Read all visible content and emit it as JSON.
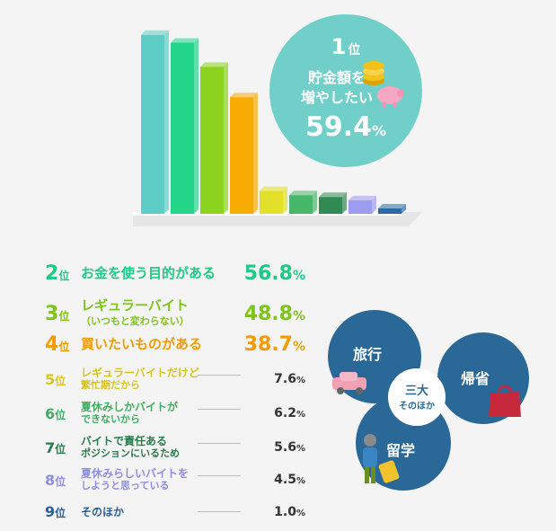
{
  "chart_data": {
    "type": "bar",
    "categories": [
      "1位",
      "2位",
      "3位",
      "4位",
      "5位",
      "6位",
      "7位",
      "8位",
      "9位"
    ],
    "values": [
      59.4,
      56.8,
      48.8,
      38.7,
      7.6,
      6.2,
      5.6,
      4.5,
      1.0
    ],
    "ylim": [
      0,
      65
    ],
    "colors": [
      "#5ecdc6",
      "#23d68a",
      "#8cd320",
      "#f8ab00",
      "#e3e02a",
      "#47b86a",
      "#2f8a54",
      "#9c9cf0",
      "#2a6aa8"
    ]
  },
  "top": {
    "rank_num": "1",
    "rank_suffix": "位",
    "label_line1": "貯金額を",
    "label_line2": "増やしたい",
    "pct_num": "59.4",
    "pct_unit": "%"
  },
  "ranking": [
    {
      "num": "2",
      "suffix": "位",
      "label": "お金を使う目的がある",
      "pct": "56.8",
      "unit": "%",
      "color": "#1dcb85"
    },
    {
      "num": "3",
      "suffix": "位",
      "label": "レギュラーバイト",
      "sub": "（いつもと変わらない）",
      "pct": "48.8",
      "unit": "%",
      "color": "#7ec51b"
    },
    {
      "num": "4",
      "suffix": "位",
      "label": "買いたいものがある",
      "pct": "38.7",
      "unit": "%",
      "color": "#f59a00"
    },
    {
      "num": "5",
      "suffix": "位",
      "label": "レギュラーバイトだけど",
      "sub": "繁忙期だから",
      "pct": "7.6",
      "unit": "%",
      "color": "#d8c51c"
    },
    {
      "num": "6",
      "suffix": "位",
      "label": "夏休みしかバイトが",
      "sub": "できないから",
      "pct": "6.2",
      "unit": "%",
      "color": "#3fae62"
    },
    {
      "num": "7",
      "suffix": "位",
      "label": "バイトで責任ある",
      "sub": "ポジションにいるため",
      "pct": "5.6",
      "unit": "%",
      "color": "#2b7a4b"
    },
    {
      "num": "8",
      "suffix": "位",
      "label": "夏休みらしいバイトを",
      "sub": "しようと思っている",
      "pct": "4.5",
      "unit": "%",
      "color": "#8d8de6"
    },
    {
      "num": "9",
      "suffix": "位",
      "label": "そのほか",
      "pct": "1.0",
      "unit": "%",
      "color": "#2a5e9c"
    }
  ],
  "circles": {
    "travel": "旅行",
    "homecoming": "帰省",
    "study_abroad": "留学",
    "center_line1": "三大",
    "center_line2": "そのほか"
  }
}
